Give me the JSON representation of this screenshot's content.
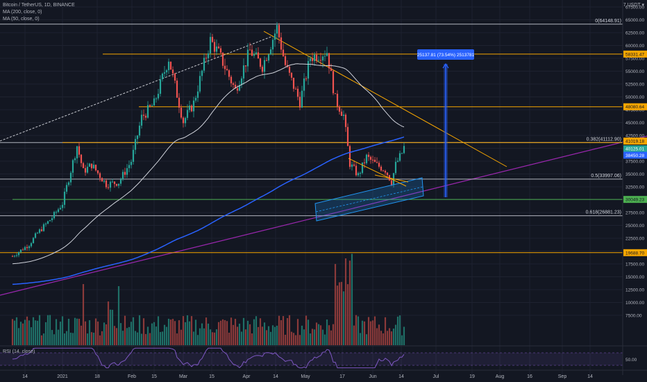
{
  "header": {
    "symbol_line": "Bitcoin / TetherUS, 1D, BINANCE",
    "ma200_line": "MA (200, close, 0)",
    "ma50_line": "MA (50, close, 0)",
    "currency": "7 USDT ▾",
    "rsi_line": "RSI (14, close)"
  },
  "colors": {
    "background": "#131722",
    "up": "#26a69a",
    "down": "#ef5350",
    "ma200": "#2962ff",
    "ma50": "#d1d4dc",
    "fib": "#b2b5be",
    "orange": "#f7a600",
    "purple": "#9c27b0",
    "green": "#4caf50",
    "channel": "#2196f3",
    "rsi": "#7e57c2"
  },
  "chart_data": {
    "type": "candlestick",
    "title": "Bitcoin / TetherUS, 1D, BINANCE",
    "y_axis": {
      "min": 5000,
      "max": 67500,
      "ticks": [
        "67500.00",
        "65000.00",
        "62500.00",
        "60000.00",
        "57500.00",
        "55000.00",
        "52500.00",
        "50000.00",
        "47500.00",
        "45000.00",
        "42500.00",
        "40000.00",
        "37500.00",
        "35000.00",
        "32500.00",
        "30000.00",
        "27500.00",
        "25000.00",
        "22500.00",
        "20000.00",
        "17500.00",
        "15000.00",
        "12500.00",
        "10000.00",
        "7500.00"
      ]
    },
    "x_axis": {
      "ticks": [
        "14",
        "2021",
        "18",
        "Feb",
        "15",
        "Mar",
        "15",
        "Apr",
        "14",
        "May",
        "17",
        "Jun",
        "14",
        "Jul",
        "19",
        "Aug",
        "16",
        "Sep",
        "14"
      ]
    },
    "price_series_anchors": [
      {
        "date": "2020-12-08",
        "close": 19000
      },
      {
        "date": "2020-12-16",
        "close": 21300
      },
      {
        "date": "2020-12-20",
        "close": 23500
      },
      {
        "date": "2020-12-27",
        "close": 26500
      },
      {
        "date": "2021-01-01",
        "close": 29300
      },
      {
        "date": "2021-01-08",
        "close": 40500
      },
      {
        "date": "2021-01-11",
        "close": 35500
      },
      {
        "date": "2021-01-15",
        "close": 36800
      },
      {
        "date": "2021-01-22",
        "close": 33000
      },
      {
        "date": "2021-01-28",
        "close": 33400
      },
      {
        "date": "2021-02-03",
        "close": 37500
      },
      {
        "date": "2021-02-08",
        "close": 46000
      },
      {
        "date": "2021-02-14",
        "close": 48700
      },
      {
        "date": "2021-02-21",
        "close": 57500
      },
      {
        "date": "2021-02-28",
        "close": 45200
      },
      {
        "date": "2021-03-05",
        "close": 48800
      },
      {
        "date": "2021-03-13",
        "close": 61000
      },
      {
        "date": "2021-03-17",
        "close": 58500
      },
      {
        "date": "2021-03-25",
        "close": 51300
      },
      {
        "date": "2021-04-01",
        "close": 59000
      },
      {
        "date": "2021-04-07",
        "close": 56000
      },
      {
        "date": "2021-04-14",
        "close": 63500
      },
      {
        "date": "2021-04-18",
        "close": 56200
      },
      {
        "date": "2021-04-25",
        "close": 49000
      },
      {
        "date": "2021-04-30",
        "close": 57700
      },
      {
        "date": "2021-05-08",
        "close": 58800
      },
      {
        "date": "2021-05-12",
        "close": 49500
      },
      {
        "date": "2021-05-16",
        "close": 46400
      },
      {
        "date": "2021-05-19",
        "close": 37000
      },
      {
        "date": "2021-05-23",
        "close": 34700
      },
      {
        "date": "2021-05-27",
        "close": 38300
      },
      {
        "date": "2021-06-01",
        "close": 36700
      },
      {
        "date": "2021-06-05",
        "close": 35800
      },
      {
        "date": "2021-06-08",
        "close": 33500
      },
      {
        "date": "2021-06-10",
        "close": 36800
      },
      {
        "date": "2021-06-13",
        "close": 39100
      },
      {
        "date": "2021-06-14",
        "close": 40200
      }
    ],
    "levels": [
      {
        "label": "0(64148.91)",
        "price": 64148.91,
        "kind": "fib"
      },
      {
        "label": "0.382(41112.90)",
        "price": 41112.9,
        "kind": "fib"
      },
      {
        "label": "0.5(33997.06)",
        "price": 33997.06,
        "kind": "fib"
      },
      {
        "label": "0.618(26881.23)",
        "price": 26881.23,
        "kind": "fib"
      },
      {
        "label": "",
        "price": 58331.47,
        "kind": "orange"
      },
      {
        "label": "",
        "price": 48080.64,
        "kind": "orange"
      },
      {
        "label": "",
        "price": 19688.7,
        "kind": "orange"
      },
      {
        "label": "",
        "price": 30049.23,
        "kind": "green"
      }
    ],
    "price_tags": [
      {
        "text": "58331.47",
        "price": 58331.47,
        "color": "#f7a600",
        "text_color": "#131722"
      },
      {
        "text": "48080.64",
        "price": 48080.64,
        "color": "#f7a600",
        "text_color": "#131722"
      },
      {
        "text": "41019.18",
        "price": 41400,
        "color": "#f7a600",
        "text_color": "#131722"
      },
      {
        "text": "40125.01",
        "price": 39900,
        "color": "#26a69a",
        "text_color": "#ffffff"
      },
      {
        "text": "38450.28",
        "price": 38650,
        "color": "#2962ff",
        "text_color": "#ffffff"
      },
      {
        "text": "30049.23",
        "price": 30049.23,
        "color": "#4caf50",
        "text_color": "#131722"
      },
      {
        "text": "19688.70",
        "price": 19688.7,
        "color": "#f7a600",
        "text_color": "#131722"
      }
    ],
    "measure_label": "25137.81 (73.54%) 2513781",
    "rsi_tick": "50.00"
  }
}
